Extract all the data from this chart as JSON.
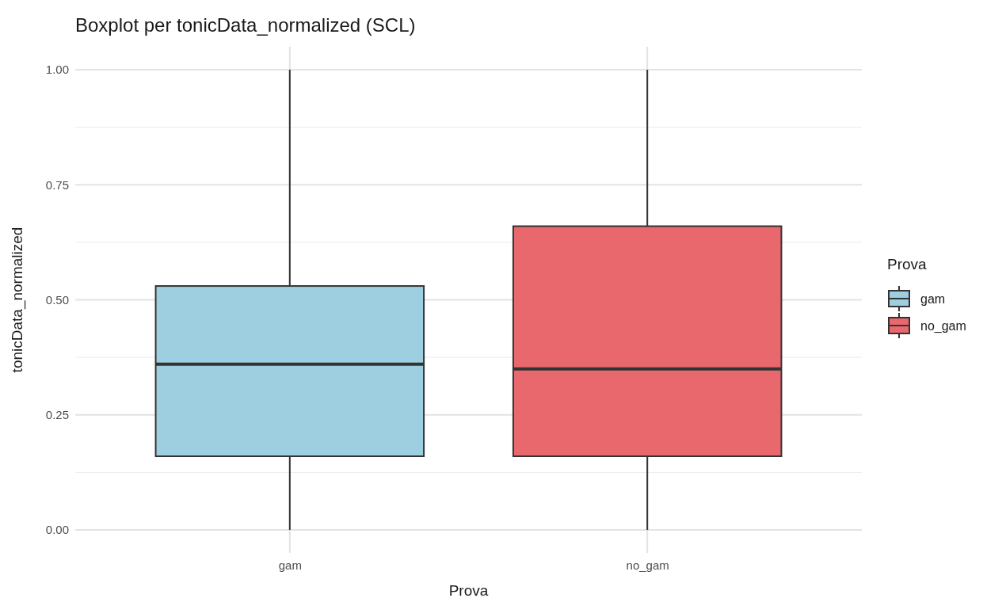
{
  "chart_data": {
    "type": "box",
    "title": "Boxplot per tonicData_normalized (SCL)",
    "xlabel": "Prova",
    "ylabel": "tonicData_normalized",
    "legend_title": "Prova",
    "categories": [
      "gam",
      "no_gam"
    ],
    "series": [
      {
        "name": "gam",
        "color": "#9ecfe0",
        "boxes": [
          {
            "low": 0,
            "q1": 0.16,
            "median": 0.36,
            "q3": 0.53,
            "high": 1
          },
          null
        ]
      },
      {
        "name": "no_gam",
        "color": "#e8686d",
        "boxes": [
          null,
          {
            "low": 0,
            "q1": 0.16,
            "median": 0.35,
            "q3": 0.66,
            "high": 1
          }
        ]
      }
    ],
    "ylim": [
      -0.05,
      1.05
    ],
    "yticks": [
      {
        "value": 0,
        "label": "0.00"
      },
      {
        "value": 0.25,
        "label": "0.25"
      },
      {
        "value": 0.5,
        "label": "0.50"
      },
      {
        "value": 0.75,
        "label": "0.75"
      },
      {
        "value": 1,
        "label": "1.00"
      }
    ],
    "grid": true,
    "legend": "right"
  }
}
